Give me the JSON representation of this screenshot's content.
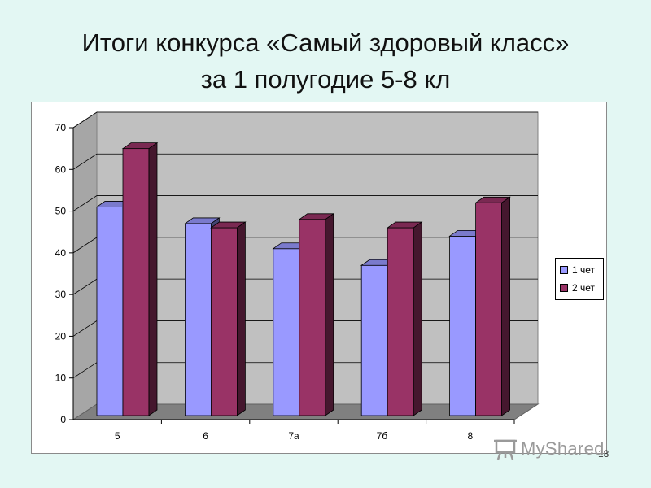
{
  "title": {
    "line1": "Итоги конкурса «Самый здоровый класс»",
    "line2": "за 1 полугодие 5-8 кл"
  },
  "chart_data": {
    "type": "bar",
    "categories": [
      "5",
      "6",
      "7а",
      "7б",
      "8"
    ],
    "series": [
      {
        "name": "1 чет",
        "values": [
          51,
          47,
          41,
          37,
          44
        ],
        "color": "#9999ff"
      },
      {
        "name": "2 чет",
        "values": [
          65,
          46,
          48,
          46,
          52
        ],
        "color": "#993366"
      }
    ],
    "ylim": [
      0,
      70
    ],
    "yticks": [
      0,
      10,
      20,
      30,
      40,
      50,
      60,
      70
    ],
    "grid": true,
    "legend_position": "right",
    "wall_color": "#c0c0c0",
    "floor_color": "#808080"
  },
  "slide_number": "18",
  "watermark": "MyShared"
}
